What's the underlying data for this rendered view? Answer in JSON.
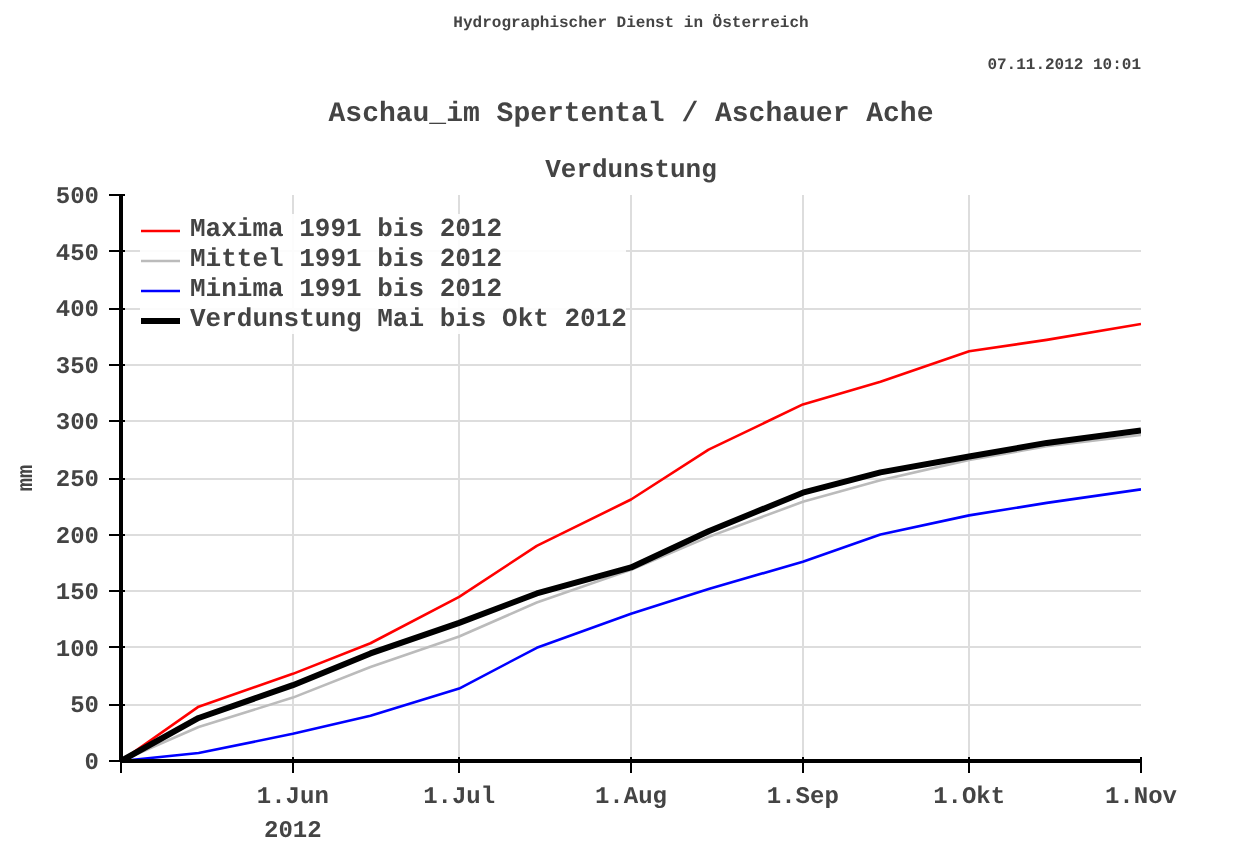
{
  "chart_data": {
    "type": "line",
    "title": "Aschau_im Spertental / Aschauer Ache",
    "subtitle": "Verdunstung",
    "ylabel": "mm",
    "annotations": [
      "Hydrographischer Dienst in Österreich",
      "07.11.2012 10:01"
    ],
    "x": [
      "2012-05-01",
      "2012-05-15",
      "2012-06-01",
      "2012-06-15",
      "2012-07-01",
      "2012-07-15",
      "2012-08-01",
      "2012-08-15",
      "2012-09-01",
      "2012-09-15",
      "2012-10-01",
      "2012-10-15",
      "2012-11-01"
    ],
    "series": [
      {
        "name": "Maxima 1991 bis 2012",
        "color": "#ff0000",
        "values": [
          0,
          48,
          77,
          104,
          145,
          190,
          231,
          275,
          315,
          335,
          362,
          372,
          386
        ]
      },
      {
        "name": "Mittel 1991 bis 2012",
        "color": "#bbbbbb",
        "values": [
          0,
          30,
          56,
          83,
          110,
          140,
          169,
          198,
          229,
          248,
          266,
          278,
          288
        ]
      },
      {
        "name": "Minima 1991 bis 2012",
        "color": "#0000ff",
        "values": [
          0,
          7,
          24,
          40,
          64,
          100,
          130,
          152,
          176,
          200,
          217,
          228,
          240
        ]
      },
      {
        "name": "Verdunstung Mai bis Okt 2012",
        "color": "#000000",
        "values": [
          0,
          38,
          67,
          95,
          122,
          148,
          171,
          203,
          237,
          255,
          269,
          281,
          292
        ]
      }
    ],
    "xlim": [
      "2012-05-01",
      "2012-11-01"
    ],
    "xticks": [
      {
        "value": "2012-05-01",
        "label": null
      },
      {
        "value": "2012-06-01",
        "label": "1.Jun\n2012"
      },
      {
        "value": "2012-07-01",
        "label": "1.Jul"
      },
      {
        "value": "2012-08-01",
        "label": "1.Aug"
      },
      {
        "value": "2012-09-01",
        "label": "1.Sep"
      },
      {
        "value": "2012-10-01",
        "label": "1.Okt"
      },
      {
        "value": "2012-11-01",
        "label": "1.Nov"
      }
    ],
    "ylim": [
      0,
      500
    ],
    "yticks": [
      0,
      50,
      100,
      150,
      200,
      250,
      300,
      350,
      400,
      450,
      500
    ],
    "grid": true,
    "legend": "top left",
    "line_style": "solid",
    "marker": "none"
  }
}
